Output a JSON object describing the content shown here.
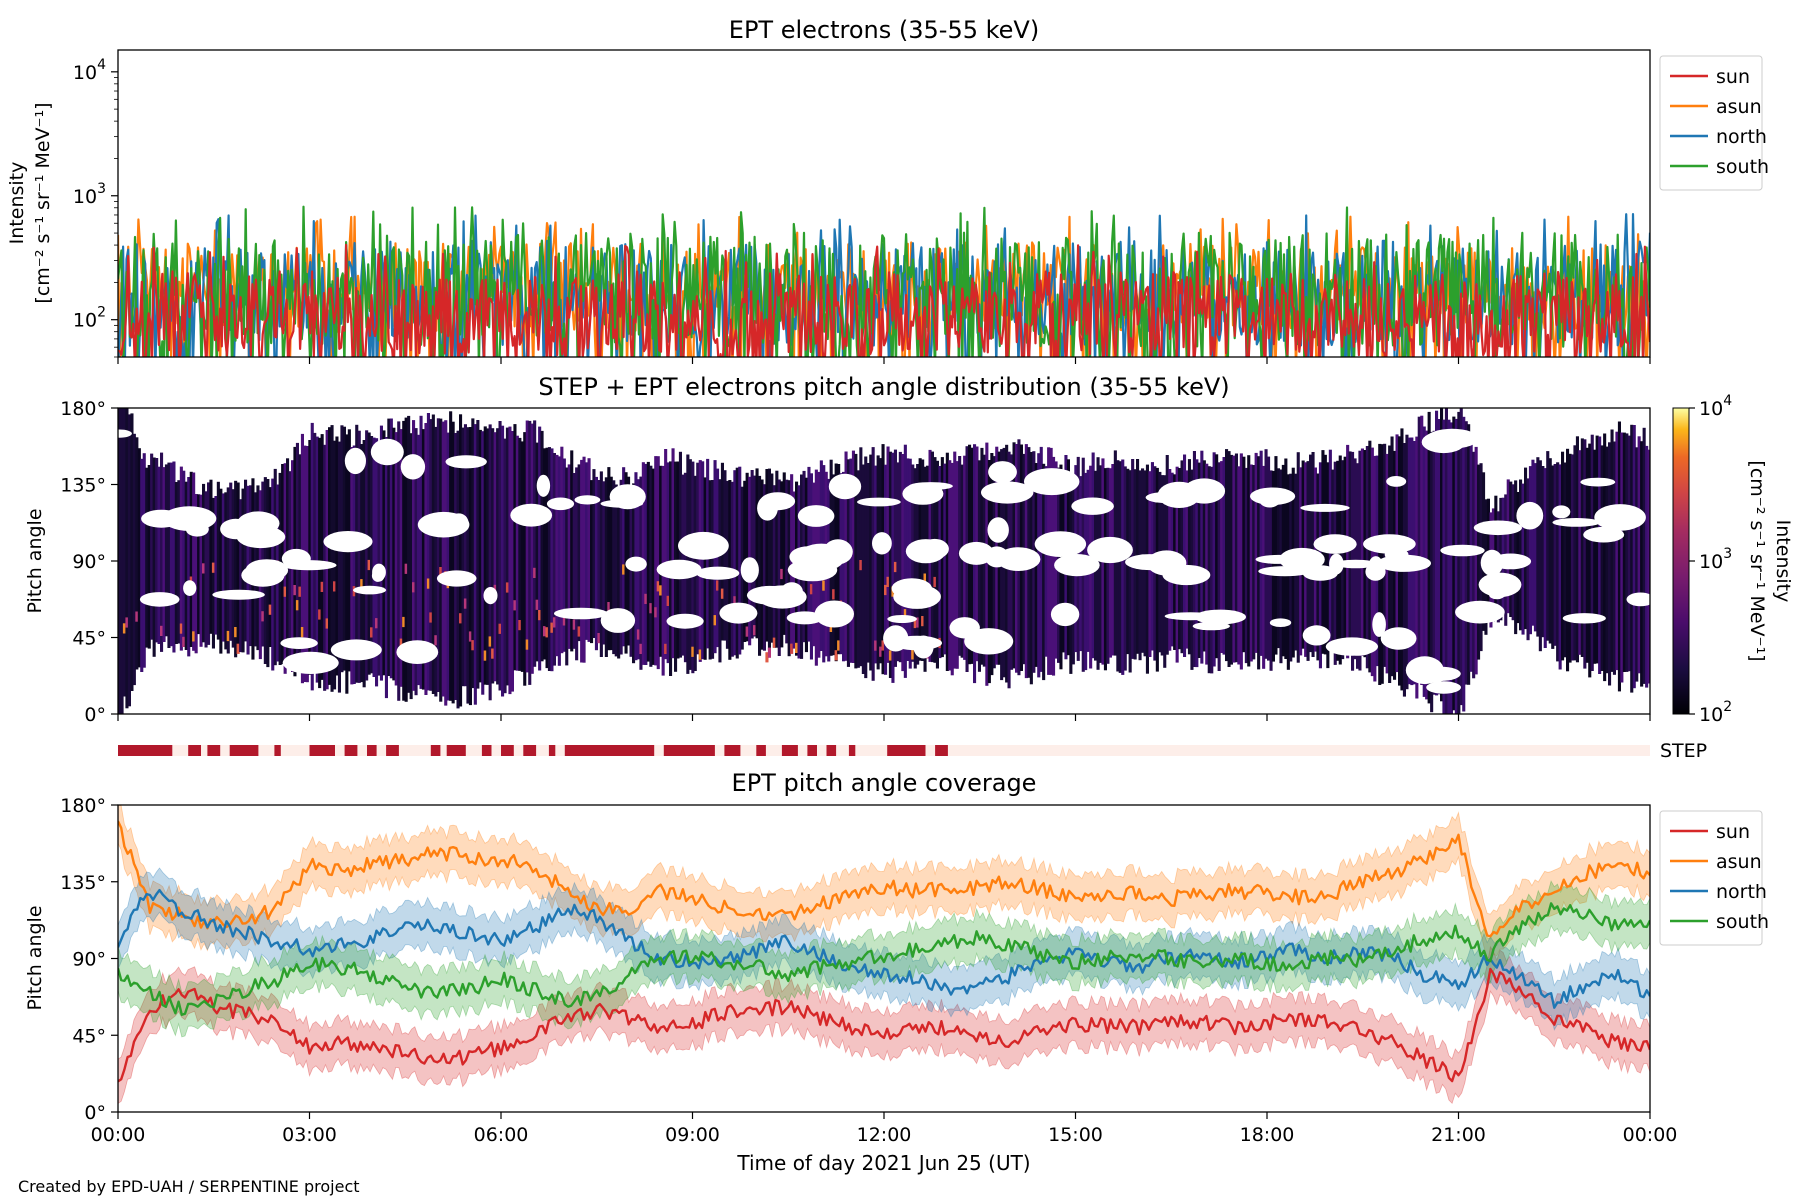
{
  "footer": "Created by EPD-UAH / SERPENTINE project",
  "colors": {
    "sun": "#d62728",
    "asun": "#ff7f0e",
    "north": "#1f77b4",
    "south": "#2ca02c",
    "step_bar": "#b2182b",
    "step_bg": "#fdeee9"
  },
  "chart_data": [
    {
      "type": "line",
      "title": "EPT electrons (35-55 keV)",
      "xlabel": "",
      "ylabel": "Intensity",
      "ylabel_units": "[cm⁻² s⁻¹ sr⁻¹ MeV⁻¹]",
      "yscale": "log",
      "ylim": [
        50,
        15000
      ],
      "xlim_hours": [
        0,
        24
      ],
      "yticks": [
        {
          "value": 100,
          "base": "10",
          "exp": "2"
        },
        {
          "value": 1000,
          "base": "10",
          "exp": "3"
        },
        {
          "value": 10000,
          "base": "10",
          "exp": "4"
        }
      ],
      "legend_location": "upper right, outside plot",
      "series": [
        {
          "name": "sun",
          "color": "#d62728",
          "typical_range": [
            50,
            350
          ]
        },
        {
          "name": "asun",
          "color": "#ff7f0e",
          "typical_range": [
            80,
            600
          ]
        },
        {
          "name": "north",
          "color": "#1f77b4",
          "typical_range": [
            60,
            620
          ]
        },
        {
          "name": "south",
          "color": "#2ca02c",
          "typical_range": [
            60,
            720
          ]
        }
      ]
    },
    {
      "type": "heatmap",
      "title": "STEP + EPT electrons pitch angle distribution (35-55 keV)",
      "ylabel": "Pitch angle",
      "ylim": [
        0,
        180
      ],
      "yticks": [
        "0°",
        "45°",
        "90°",
        "135°",
        "180°"
      ],
      "xlim_hours": [
        0,
        24
      ],
      "colorbar": {
        "label": "Intensity",
        "units": "[cm⁻² s⁻¹ sr⁻¹ MeV⁻¹]",
        "scale": "log",
        "range": [
          100,
          10000
        ],
        "ticks": [
          {
            "value": 100,
            "base": "10",
            "exp": "2"
          },
          {
            "value": 1000,
            "base": "10",
            "exp": "3"
          },
          {
            "value": 10000,
            "base": "10",
            "exp": "4"
          }
        ],
        "colormap": "inferno"
      },
      "step_coverage": {
        "label": "STEP",
        "intervals_hours": [
          [
            0.0,
            0.85
          ],
          [
            1.1,
            1.3
          ],
          [
            1.4,
            1.6
          ],
          [
            1.75,
            2.2
          ],
          [
            2.45,
            2.55
          ],
          [
            3.0,
            3.4
          ],
          [
            3.55,
            3.75
          ],
          [
            3.9,
            4.05
          ],
          [
            4.2,
            4.4
          ],
          [
            4.9,
            5.05
          ],
          [
            5.15,
            5.45
          ],
          [
            5.7,
            5.85
          ],
          [
            6.0,
            6.2
          ],
          [
            6.35,
            6.55
          ],
          [
            6.75,
            6.85
          ],
          [
            7.0,
            8.4
          ],
          [
            8.55,
            9.35
          ],
          [
            9.5,
            9.75
          ],
          [
            10.0,
            10.15
          ],
          [
            10.4,
            10.65
          ],
          [
            10.8,
            10.95
          ],
          [
            11.1,
            11.25
          ],
          [
            11.45,
            11.55
          ],
          [
            12.05,
            12.65
          ],
          [
            12.8,
            13.0
          ]
        ]
      }
    },
    {
      "type": "line",
      "title": "EPT pitch angle coverage",
      "xlabel": "Time of day 2021 Jun 25 (UT)",
      "ylabel": "Pitch angle",
      "ylim": [
        0,
        180
      ],
      "yticks": [
        "0°",
        "45°",
        "90°",
        "135°",
        "180°"
      ],
      "xlim_hours": [
        0,
        24
      ],
      "xticks": [
        "00:00",
        "03:00",
        "06:00",
        "09:00",
        "12:00",
        "15:00",
        "18:00",
        "21:00",
        "00:00"
      ],
      "legend_location": "upper right, outside plot",
      "shaded_band_halfwidth_deg": 13,
      "series": [
        {
          "name": "sun",
          "color": "#d62728",
          "x_hours": [
            0,
            0.5,
            1,
            1.5,
            2,
            2.5,
            3,
            3.5,
            4,
            4.5,
            5,
            5.5,
            6,
            6.5,
            7,
            7.5,
            8,
            8.5,
            9,
            9.5,
            10,
            10.5,
            11,
            11.5,
            12,
            12.5,
            13,
            13.5,
            14,
            14.5,
            15,
            15.5,
            16,
            16.5,
            17,
            17.5,
            18,
            18.5,
            19,
            19.5,
            20,
            20.5,
            21,
            21.5,
            22,
            22.5,
            23,
            23.5,
            24
          ],
          "y_deg": [
            18,
            60,
            72,
            62,
            58,
            52,
            38,
            40,
            38,
            35,
            30,
            32,
            38,
            45,
            55,
            60,
            55,
            48,
            52,
            58,
            60,
            62,
            55,
            50,
            45,
            48,
            50,
            45,
            42,
            48,
            52,
            50,
            50,
            55,
            52,
            50,
            52,
            55,
            52,
            48,
            40,
            30,
            20,
            80,
            72,
            55,
            48,
            40,
            38
          ]
        },
        {
          "name": "asun",
          "color": "#ff7f0e",
          "x_hours": [
            0,
            0.5,
            1,
            1.5,
            2,
            2.5,
            3,
            3.5,
            4,
            4.5,
            5,
            5.5,
            6,
            6.5,
            7,
            7.5,
            8,
            8.5,
            9,
            9.5,
            10,
            10.5,
            11,
            11.5,
            12,
            12.5,
            13,
            13.5,
            14,
            14.5,
            15,
            15.5,
            16,
            16.5,
            17,
            17.5,
            18,
            18.5,
            19,
            19.5,
            20,
            20.5,
            21,
            21.5,
            22,
            22.5,
            23,
            23.5,
            24
          ],
          "y_deg": [
            170,
            120,
            115,
            110,
            112,
            120,
            145,
            142,
            145,
            148,
            152,
            150,
            148,
            145,
            130,
            120,
            118,
            130,
            125,
            120,
            118,
            115,
            122,
            128,
            132,
            130,
            130,
            132,
            135,
            130,
            125,
            128,
            128,
            125,
            128,
            130,
            128,
            126,
            128,
            135,
            140,
            150,
            160,
            100,
            120,
            130,
            140,
            145,
            140
          ]
        },
        {
          "name": "north",
          "color": "#1f77b4",
          "x_hours": [
            0,
            0.5,
            1,
            1.5,
            2,
            2.5,
            3,
            3.5,
            4,
            4.5,
            5,
            5.5,
            6,
            6.5,
            7,
            7.5,
            8,
            8.5,
            9,
            9.5,
            10,
            10.5,
            11,
            11.5,
            12,
            12.5,
            13,
            13.5,
            14,
            14.5,
            15,
            15.5,
            16,
            16.5,
            17,
            17.5,
            18,
            18.5,
            19,
            19.5,
            20,
            20.5,
            21,
            21.5,
            22,
            22.5,
            23,
            23.5,
            24
          ],
          "y_deg": [
            100,
            130,
            118,
            110,
            105,
            100,
            95,
            98,
            102,
            110,
            108,
            105,
            100,
            108,
            118,
            115,
            100,
            90,
            88,
            90,
            95,
            100,
            92,
            85,
            80,
            78,
            72,
            75,
            80,
            90,
            92,
            88,
            85,
            90,
            92,
            88,
            92,
            95,
            90,
            95,
            90,
            80,
            75,
            90,
            80,
            65,
            75,
            80,
            68
          ]
        },
        {
          "name": "south",
          "color": "#2ca02c",
          "x_hours": [
            0,
            0.5,
            1,
            1.5,
            2,
            2.5,
            3,
            3.5,
            4,
            4.5,
            5,
            5.5,
            6,
            6.5,
            7,
            7.5,
            8,
            8.5,
            9,
            9.5,
            10,
            10.5,
            11,
            11.5,
            12,
            12.5,
            13,
            13.5,
            14,
            14.5,
            15,
            15.5,
            16,
            16.5,
            17,
            17.5,
            18,
            18.5,
            19,
            19.5,
            20,
            20.5,
            21,
            21.5,
            22,
            22.5,
            23,
            23.5,
            24
          ],
          "y_deg": [
            80,
            70,
            60,
            65,
            72,
            78,
            88,
            85,
            80,
            72,
            70,
            72,
            78,
            72,
            65,
            68,
            80,
            90,
            92,
            88,
            85,
            80,
            85,
            88,
            92,
            95,
            100,
            102,
            98,
            92,
            88,
            90,
            92,
            90,
            88,
            90,
            86,
            88,
            90,
            88,
            95,
            102,
            105,
            92,
            110,
            120,
            115,
            110,
            110
          ]
        }
      ]
    }
  ]
}
